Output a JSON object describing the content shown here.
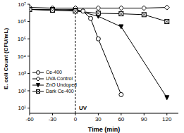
{
  "chart_data": {
    "type": "line",
    "x_label": "Time (min)",
    "y_label": "E. coli Count (CFU/mL)",
    "log": "y",
    "xlim": [
      -60,
      135
    ],
    "xticks": [
      -60,
      -30,
      0,
      30,
      60,
      90,
      120
    ],
    "ylim": [
      5,
      10000000
    ],
    "yticks": [
      {
        "value": 10,
        "label": "10¹"
      },
      {
        "value": 100,
        "label": "10²"
      },
      {
        "value": 1000,
        "label": "10³"
      },
      {
        "value": 10000,
        "label": "10⁴"
      },
      {
        "value": 100000,
        "label": "10⁵"
      },
      {
        "value": 1000000,
        "label": "10⁶"
      },
      {
        "value": 10000000,
        "label": "10⁷"
      }
    ],
    "legend": "lower left",
    "annotations": [
      {
        "x": 0,
        "text": "UV",
        "line_style": "dashed"
      }
    ],
    "series": [
      {
        "name": "Ce-400",
        "color": "#000000",
        "marker": "circle",
        "x": [
          -60,
          -30,
          0,
          10,
          20,
          30,
          60
        ],
        "values": [
          5000000,
          4500000,
          5000000,
          4000000,
          1500000,
          100000,
          60
        ]
      },
      {
        "name": "UVA Control",
        "color": "#000000",
        "marker": "diamond",
        "x": [
          -60,
          -30,
          0,
          30,
          60,
          90,
          120
        ],
        "values": [
          6500000,
          6000000,
          6000000,
          6000000,
          6000000,
          6000000,
          6500000
        ]
      },
      {
        "name": "ZnO Undoped",
        "color": "#000000",
        "marker": "triangle-down",
        "x": [
          -60,
          -30,
          0,
          30,
          60,
          120
        ],
        "values": [
          5000000,
          5000000,
          4500000,
          2000000,
          500000,
          40
        ]
      },
      {
        "name": "Dark Ce-400",
        "color": "#000000",
        "marker": "square-x",
        "x": [
          -60,
          -30,
          0,
          30,
          60,
          90,
          120
        ],
        "values": [
          5000000,
          4500000,
          4000000,
          3000000,
          2800000,
          2500000,
          1000000
        ]
      }
    ]
  }
}
